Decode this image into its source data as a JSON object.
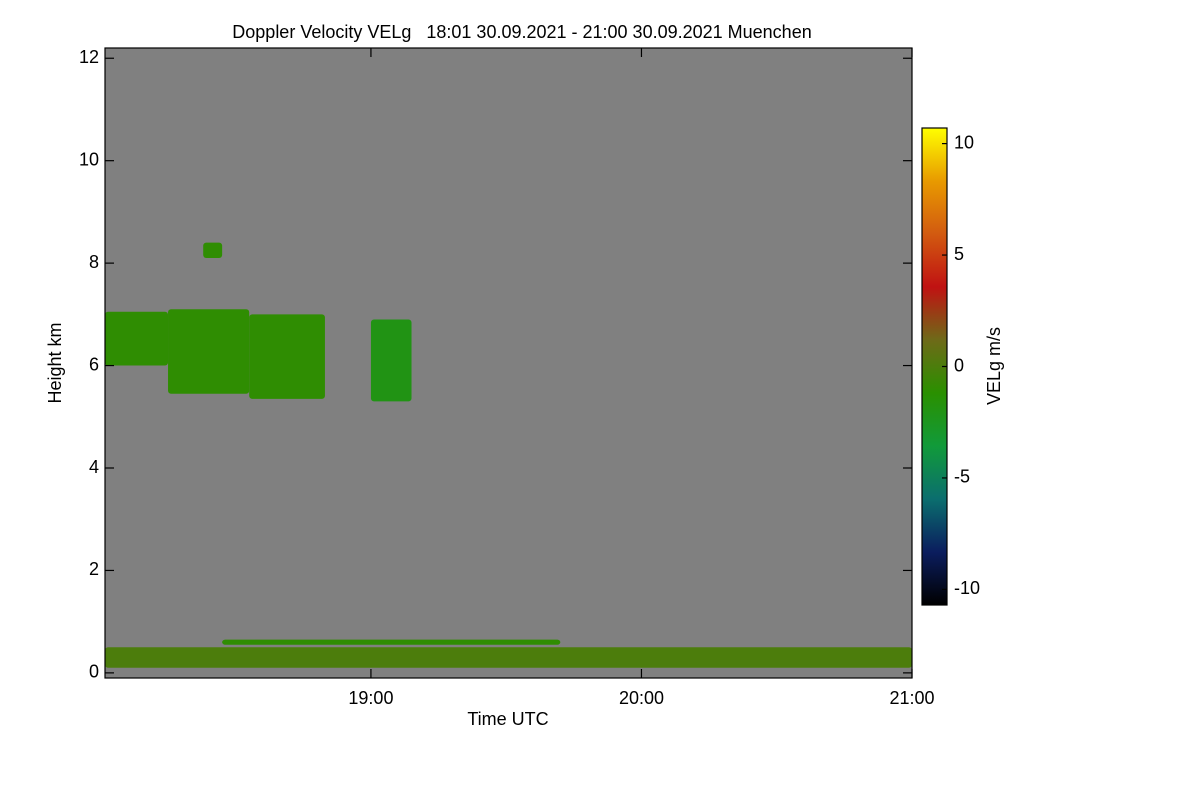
{
  "chart_data": {
    "type": "heatmap",
    "title": "Doppler Velocity VELg   18:01 30.09.2021 - 21:00 30.09.2021 Muenchen",
    "x_label": "Time UTC",
    "y_label": "Height km",
    "colorbar_label": "VELg m/s",
    "xlim": [
      18.017,
      21.0
    ],
    "xticks": [
      {
        "value": 19,
        "label": "19:00"
      },
      {
        "value": 20,
        "label": "20:00"
      },
      {
        "value": 21,
        "label": "21:00"
      }
    ],
    "ylim": [
      -0.1,
      12.2
    ],
    "yticks": [
      0,
      2,
      4,
      6,
      8,
      10,
      12
    ],
    "clim": [
      -10.7,
      10.7
    ],
    "cticks": [
      -10,
      -5,
      0,
      5,
      10
    ],
    "background": "#808080",
    "colormap": [
      "#000000",
      "#0b1d5e",
      "#0b6e6e",
      "#119a3a",
      "#2a9000",
      "#6e6a18",
      "#c01212",
      "#d25a10",
      "#e89a00",
      "#ffff00"
    ],
    "regions": [
      {
        "x": [
          18.017,
          18.25
        ],
        "y": [
          6.0,
          7.05
        ],
        "value": -1
      },
      {
        "x": [
          18.25,
          18.55
        ],
        "y": [
          5.45,
          7.1
        ],
        "value": -1
      },
      {
        "x": [
          18.55,
          18.83
        ],
        "y": [
          5.35,
          7.0
        ],
        "value": -1
      },
      {
        "x": [
          18.38,
          18.45
        ],
        "y": [
          8.1,
          8.4
        ],
        "value": -1
      },
      {
        "x": [
          19.0,
          19.15
        ],
        "y": [
          5.3,
          6.9
        ],
        "value": -2
      },
      {
        "x": [
          18.017,
          21.0
        ],
        "y": [
          0.1,
          0.5
        ],
        "value": 0
      },
      {
        "x": [
          18.45,
          19.7
        ],
        "y": [
          0.55,
          0.65
        ],
        "value": -1
      }
    ]
  }
}
